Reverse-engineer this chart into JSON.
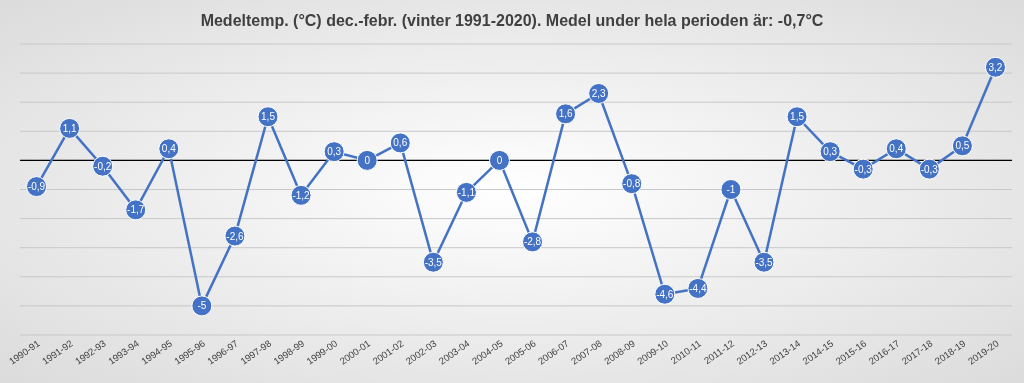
{
  "chart_data": {
    "type": "line",
    "title": "Medeltemp. (°C) dec.-febr. (vinter 1991-2020).  Medel under hela perioden är: -0,7°C",
    "categories": [
      "1990-91",
      "1991-92",
      "1992-93",
      "1993-94",
      "1994-95",
      "1995-96",
      "1996-97",
      "1997-98",
      "1998-99",
      "1999-00",
      "2000-01",
      "2001-02",
      "2002-03",
      "2003-04",
      "2004-05",
      "2005-06",
      "2006-07",
      "2007-08",
      "2008-09",
      "2009-10",
      "2010-11",
      "2011-12",
      "2012-13",
      "2013-14",
      "2014-15",
      "2015-16",
      "2016-17",
      "2017-18",
      "2018-19",
      "2019-20"
    ],
    "series": [
      {
        "color": "#4472c4",
        "values": [
          -0.9,
          1.1,
          -0.2,
          -1.7,
          0.4,
          -5,
          -2.6,
          1.5,
          -1.2,
          0.3,
          0,
          0.6,
          -3.5,
          -1.1,
          0,
          -2.8,
          1.6,
          2.3,
          -0.8,
          -4.6,
          -4.4,
          -1,
          -3.5,
          1.5,
          0.3,
          -0.3,
          0.4,
          -0.3,
          0.5,
          3.2
        ],
        "value_labels": [
          "-0,9",
          "1,1",
          "-0,2",
          "-1,7",
          "0,4",
          "-5",
          "-2,6",
          "1,5",
          "-1,2",
          "0,3",
          "0",
          "0,6",
          "-3,5",
          "-1,1",
          "0",
          "-2,8",
          "1,6",
          "2,3",
          "-0,8",
          "-4,6",
          "-4,4",
          "-1",
          "-3,5",
          "1,5",
          "0,3",
          "-0,3",
          "0,4",
          "-0,3",
          "0,5",
          "3,2"
        ]
      }
    ],
    "ylim": [
      -6,
      4
    ],
    "yticks": [
      {
        "value": -6,
        "label": null
      },
      {
        "value": -5,
        "label": null
      },
      {
        "value": -4,
        "label": null
      },
      {
        "value": -3,
        "label": null
      },
      {
        "value": -2,
        "label": null
      },
      {
        "value": -1,
        "label": null
      },
      {
        "value": 0,
        "label": null
      },
      {
        "value": 1,
        "label": null
      },
      {
        "value": 2,
        "label": null
      },
      {
        "value": 3,
        "label": null
      },
      {
        "value": 4,
        "label": null
      }
    ],
    "grid": "y",
    "tick_labels": "x",
    "marker": "circle",
    "line_style": "solid"
  }
}
